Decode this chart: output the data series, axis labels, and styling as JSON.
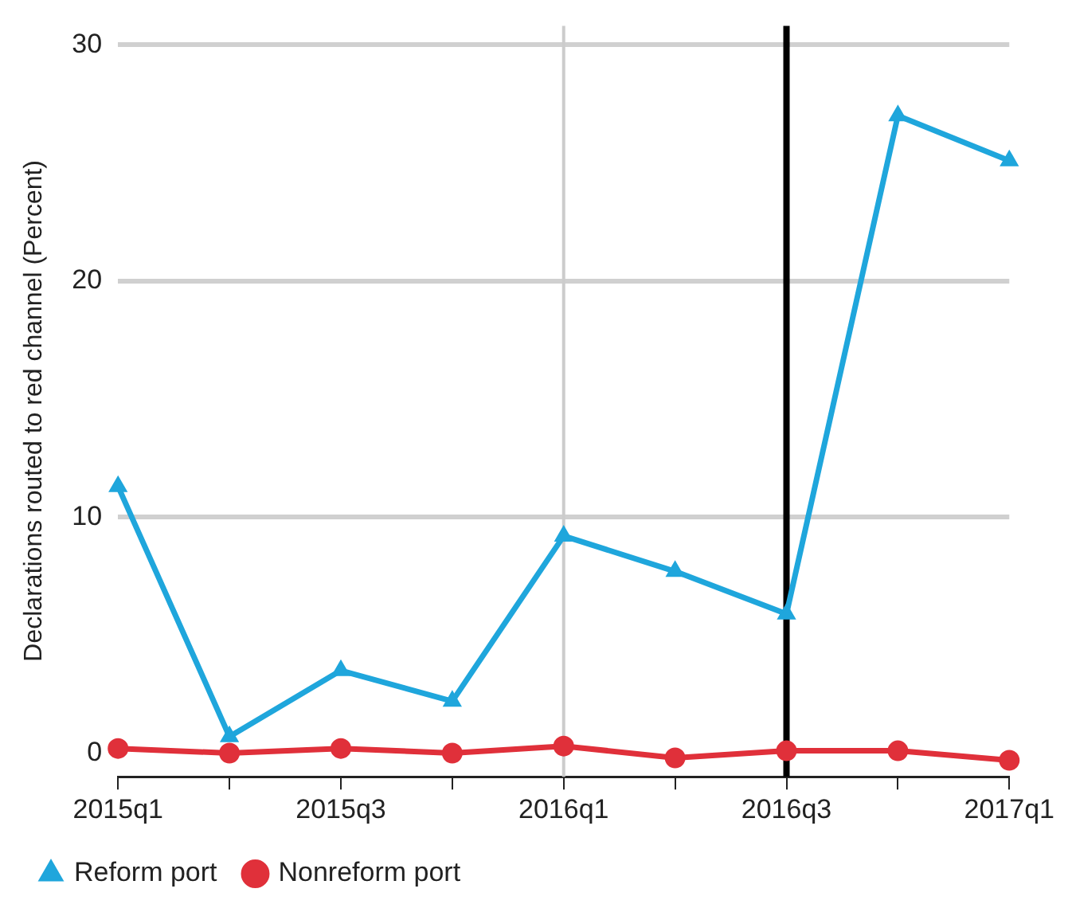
{
  "chart_data": {
    "type": "line",
    "ylabel": "Declarations routed to red channel (Percent)",
    "categories": [
      "2015q1",
      null,
      "2015q3",
      null,
      "2016q1",
      null,
      "2016q3",
      null,
      "2017q1"
    ],
    "series": [
      {
        "name": "Reform port",
        "color": "#1fa6dc",
        "marker": "triangle",
        "values": [
          11.3,
          0.7,
          3.5,
          2.2,
          9.2,
          7.7,
          5.9,
          27.0,
          25.1
        ]
      },
      {
        "name": "Nonreform port",
        "color": "#e0303a",
        "marker": "circle",
        "values": [
          0.2,
          0.0,
          0.2,
          0.0,
          0.3,
          -0.2,
          0.1,
          0.1,
          -0.3
        ]
      }
    ],
    "ylim": [
      -1,
      30
    ],
    "yticks": [
      0,
      10,
      20,
      30
    ],
    "grid": "y",
    "legend": "bottom",
    "ref_lines": [
      {
        "axis": "x",
        "value": "2016q1",
        "color": "#cccccc"
      },
      {
        "axis": "x",
        "value": "2016q3",
        "color": "#000000"
      }
    ]
  }
}
